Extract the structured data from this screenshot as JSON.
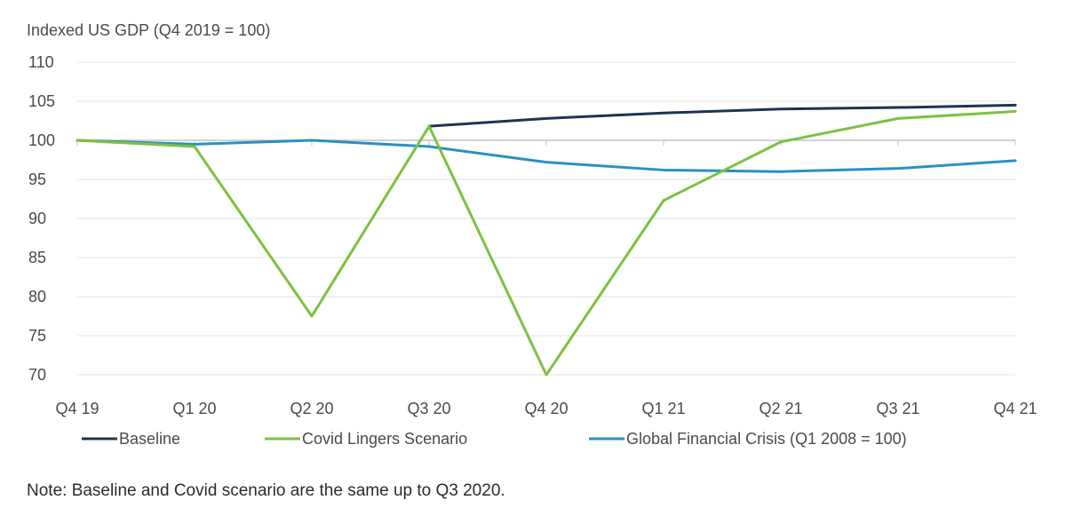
{
  "chart_data": {
    "type": "line",
    "ylabel": "Indexed US GDP (Q4 2019 = 100)",
    "ylim": [
      70,
      110
    ],
    "yticks": [
      110,
      105,
      100,
      95,
      90,
      85,
      80,
      75,
      70
    ],
    "categories": [
      "Q4 19",
      "Q1 20",
      "Q2 20",
      "Q3 20",
      "Q4 20",
      "Q1 21",
      "Q2 21",
      "Q3 21",
      "Q4 21"
    ],
    "grid": true,
    "legend_position": "bottom",
    "series": [
      {
        "name": "Baseline",
        "color": "#1f3350",
        "values": [
          100,
          99.2,
          77.5,
          101.8,
          102.8,
          103.5,
          104.0,
          104.2,
          104.5
        ]
      },
      {
        "name": "Covid Lingers Scenario",
        "color": "#7cc142",
        "values": [
          100,
          99.2,
          77.5,
          101.8,
          70.0,
          92.3,
          99.8,
          102.8,
          103.7
        ]
      },
      {
        "name": "Global Financial Crisis (Q1 2008 = 100)",
        "color": "#2a8fc7",
        "values": [
          100,
          99.5,
          100.0,
          99.2,
          97.2,
          96.2,
          96.0,
          96.4,
          97.4
        ]
      }
    ]
  },
  "note": "Note: Baseline and Covid scenario are the same up to Q3 2020."
}
